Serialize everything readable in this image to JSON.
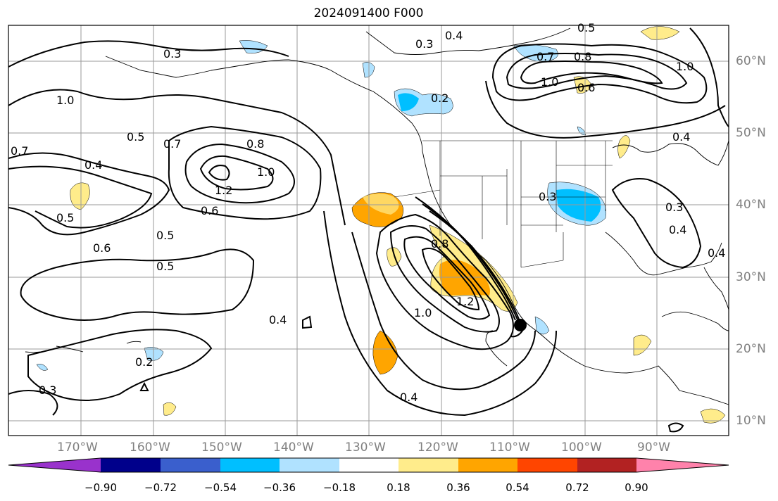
{
  "title": "2024091400 F000",
  "lat_ticks": [
    "60°N",
    "50°N",
    "40°N",
    "30°N",
    "20°N",
    "10°N"
  ],
  "lon_ticks": [
    "170°W",
    "160°W",
    "150°W",
    "140°W",
    "130°W",
    "120°W",
    "110°W",
    "100°W",
    "90°W"
  ],
  "colorbar": {
    "labels": [
      "−0.90",
      "−0.72",
      "−0.54",
      "−0.36",
      "−0.18",
      "0.18",
      "0.36",
      "0.54",
      "0.72",
      "0.90"
    ],
    "colors": [
      "#9932CC",
      "#00008B",
      "#3A5FCD",
      "#00BFFF",
      "#B0E2FF",
      "#FFFFFF",
      "#FFEC8B",
      "#FFA500",
      "#FF4500",
      "#B22222",
      "#FF82AB"
    ]
  },
  "contour_labels": [
    "0.3",
    "0.4",
    "0.5",
    "0.6",
    "0.7",
    "0.8",
    "1.0",
    "1.2",
    "0.2"
  ],
  "map": {
    "lat_range": [
      8,
      66
    ],
    "lon_range": [
      -180,
      -80
    ],
    "features": [
      "coastlines",
      "us-state-borders",
      "country-borders",
      "lat-lon-grid",
      "marker"
    ]
  }
}
